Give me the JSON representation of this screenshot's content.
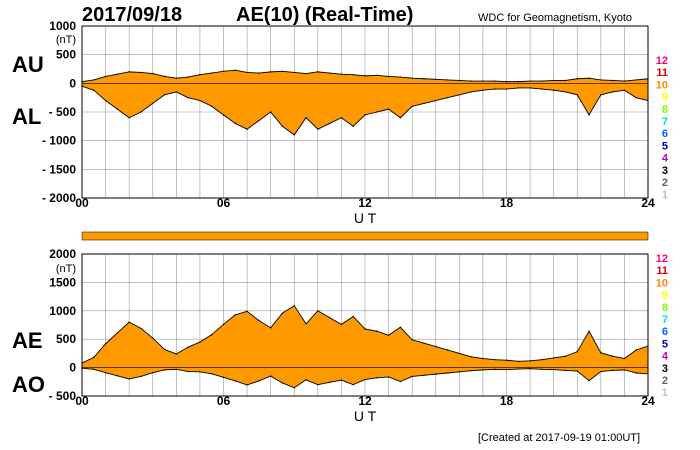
{
  "header": {
    "date": "2017/09/18",
    "title": "AE(10) (Real-Time)",
    "source": "WDC for Geomagnetism, Kyoto"
  },
  "footer": {
    "created": "[Created at 2017-09-19 01:00UT]"
  },
  "station_scale": {
    "labels": [
      "12",
      "11",
      "10",
      "9",
      "8",
      "7",
      "6",
      "5",
      "4",
      "3",
      "2",
      "1"
    ],
    "colors": [
      "#ff0080",
      "#e00000",
      "#ff8c00",
      "#ffff00",
      "#80ff00",
      "#00e0e0",
      "#0060ff",
      "#0000c0",
      "#c000c0",
      "#000000",
      "#606060",
      "#c0c0c0"
    ]
  },
  "chart_data": [
    {
      "type": "area",
      "panel": "AU/AL",
      "series_labels": [
        "AU",
        "AL"
      ],
      "xlabel": "U T",
      "ylabel": "(nT)",
      "xlim": [
        0,
        24
      ],
      "ylim": [
        -2000,
        1000
      ],
      "xticks": [
        "00",
        "06",
        "12",
        "18",
        "24"
      ],
      "yticks": [
        "1000",
        "500",
        "0",
        "- 500",
        "- 1000",
        "- 1500",
        "- 2000"
      ],
      "fill_color": "#ff9900",
      "x": [
        0,
        0.5,
        1,
        1.5,
        2,
        2.5,
        3,
        3.5,
        4,
        4.5,
        5,
        5.5,
        6,
        6.5,
        7,
        7.5,
        8,
        8.5,
        9,
        9.5,
        10,
        10.5,
        11,
        11.5,
        12,
        12.5,
        13,
        13.5,
        14,
        14.5,
        15,
        15.5,
        16,
        16.5,
        17,
        17.5,
        18,
        18.5,
        19,
        19.5,
        20,
        20.5,
        21,
        21.5,
        22,
        22.5,
        23,
        23.5,
        24
      ],
      "series": [
        {
          "name": "AU",
          "values": [
            30,
            60,
            120,
            160,
            200,
            190,
            170,
            120,
            90,
            110,
            150,
            180,
            210,
            230,
            190,
            180,
            200,
            210,
            190,
            170,
            200,
            180,
            160,
            150,
            130,
            140,
            120,
            110,
            90,
            80,
            70,
            60,
            50,
            40,
            40,
            40,
            30,
            30,
            40,
            40,
            50,
            50,
            80,
            90,
            60,
            50,
            40,
            60,
            80
          ]
        },
        {
          "name": "AL",
          "values": [
            -50,
            -120,
            -300,
            -450,
            -600,
            -500,
            -350,
            -200,
            -150,
            -250,
            -300,
            -400,
            -550,
            -700,
            -800,
            -650,
            -500,
            -750,
            -900,
            -600,
            -800,
            -700,
            -600,
            -750,
            -550,
            -500,
            -450,
            -600,
            -400,
            -350,
            -300,
            -250,
            -200,
            -150,
            -120,
            -100,
            -100,
            -80,
            -80,
            -100,
            -120,
            -150,
            -200,
            -550,
            -200,
            -150,
            -120,
            -250,
            -300
          ]
        }
      ]
    },
    {
      "type": "area",
      "panel": "AE/AO",
      "series_labels": [
        "AE",
        "AO"
      ],
      "xlabel": "U T",
      "ylabel": "(nT)",
      "xlim": [
        0,
        24
      ],
      "ylim": [
        -500,
        2000
      ],
      "xticks": [
        "00",
        "06",
        "12",
        "18",
        "24"
      ],
      "yticks": [
        "2000",
        "1500",
        "1000",
        "500",
        "0",
        "- 500"
      ],
      "fill_color": "#ff9900",
      "x": [
        0,
        0.5,
        1,
        1.5,
        2,
        2.5,
        3,
        3.5,
        4,
        4.5,
        5,
        5.5,
        6,
        6.5,
        7,
        7.5,
        8,
        8.5,
        9,
        9.5,
        10,
        10.5,
        11,
        11.5,
        12,
        12.5,
        13,
        13.5,
        14,
        14.5,
        15,
        15.5,
        16,
        16.5,
        17,
        17.5,
        18,
        18.5,
        19,
        19.5,
        20,
        20.5,
        21,
        21.5,
        22,
        22.5,
        23,
        23.5,
        24
      ],
      "series": [
        {
          "name": "AE",
          "values": [
            80,
            180,
            420,
            610,
            800,
            690,
            520,
            320,
            240,
            360,
            450,
            580,
            760,
            930,
            990,
            830,
            700,
            960,
            1090,
            770,
            1000,
            880,
            760,
            900,
            680,
            640,
            570,
            710,
            490,
            430,
            370,
            310,
            250,
            190,
            160,
            140,
            130,
            110,
            120,
            140,
            170,
            200,
            280,
            640,
            260,
            200,
            160,
            310,
            380
          ]
        },
        {
          "name": "AO",
          "values": [
            -10,
            -30,
            -90,
            -145,
            -200,
            -155,
            -90,
            -40,
            -30,
            -70,
            -75,
            -110,
            -170,
            -235,
            -305,
            -235,
            -150,
            -270,
            -355,
            -215,
            -300,
            -260,
            -220,
            -300,
            -210,
            -180,
            -165,
            -245,
            -155,
            -135,
            -115,
            -95,
            -75,
            -55,
            -40,
            -30,
            -35,
            -25,
            -20,
            -30,
            -35,
            -50,
            -60,
            -230,
            -70,
            -50,
            -40,
            -95,
            -110
          ]
        }
      ]
    }
  ]
}
